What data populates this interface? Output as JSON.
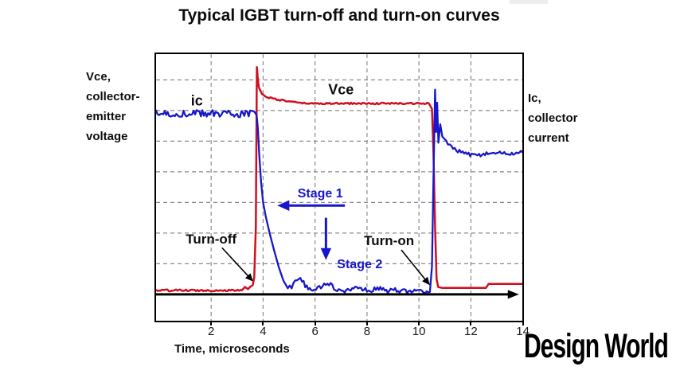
{
  "watermark": "Design World",
  "artifact_color": "#ededf0",
  "chart_data": {
    "type": "line",
    "title": "Typical IGBT turn-off and turn-on curves",
    "xlabel": "Time, microseconds",
    "ylabel": "",
    "left_axis_label": "Vce,\ncollector-\nemitter\nvoltage",
    "right_axis_label": "Ic,\ncollector\ncurrent",
    "x_ticks": [
      2,
      4,
      6,
      8,
      10,
      12,
      14
    ],
    "xlim": [
      -0.12,
      13.98
    ],
    "ylim": [
      -0.86,
      7.84
    ],
    "y_units_note": "relative grid units, no y tick labels shown; time axis drawn at 0",
    "grid": true,
    "grid_color": "#8a8a8a",
    "frame_color": "#000000",
    "legend_position": "none",
    "series": [
      {
        "name": "Vce",
        "color": "#d00f1e",
        "width": 2.5,
        "points": [
          [
            -0.12,
            0.13
          ],
          [
            3.18,
            0.13
          ],
          [
            3.3,
            0.24
          ],
          [
            3.42,
            0.17
          ],
          [
            3.52,
            0.26
          ],
          [
            3.6,
            0.3
          ],
          [
            3.66,
            0.55
          ],
          [
            3.72,
            2.2
          ],
          [
            3.76,
            7.42
          ],
          [
            3.8,
            7.0
          ],
          [
            3.84,
            6.75
          ],
          [
            3.95,
            6.55
          ],
          [
            4.1,
            6.45
          ],
          [
            4.35,
            6.4
          ],
          [
            4.65,
            6.34
          ],
          [
            5.0,
            6.3
          ],
          [
            5.4,
            6.24
          ],
          [
            6.0,
            6.23
          ],
          [
            10.38,
            6.23
          ],
          [
            10.5,
            6.05
          ],
          [
            10.56,
            4.6
          ],
          [
            10.62,
            2.2
          ],
          [
            10.68,
            0.5
          ],
          [
            10.74,
            0.24
          ],
          [
            10.9,
            0.21
          ],
          [
            12.58,
            0.21
          ],
          [
            12.68,
            0.34
          ],
          [
            13.98,
            0.34
          ]
        ],
        "noise": [
          [
            -0.12,
            3.15,
            0.03
          ],
          [
            4.2,
            10.35,
            0.025
          ]
        ]
      },
      {
        "name": "ic",
        "color": "#1717c9",
        "width": 2.3,
        "points": [
          [
            -0.12,
            5.9
          ],
          [
            3.5,
            5.9
          ],
          [
            3.65,
            5.97
          ],
          [
            3.75,
            5.85
          ],
          [
            3.8,
            5.4
          ],
          [
            3.85,
            4.6
          ],
          [
            3.92,
            3.7
          ],
          [
            4.0,
            3.0
          ],
          [
            4.1,
            2.55
          ],
          [
            4.25,
            2.0
          ],
          [
            4.42,
            1.45
          ],
          [
            4.6,
            0.9
          ],
          [
            4.78,
            0.45
          ],
          [
            4.95,
            0.2
          ],
          [
            5.1,
            0.22
          ],
          [
            5.3,
            0.48
          ],
          [
            5.5,
            0.45
          ],
          [
            5.68,
            0.22
          ],
          [
            5.85,
            0.12
          ],
          [
            6.1,
            0.2
          ],
          [
            6.35,
            0.33
          ],
          [
            6.6,
            0.3
          ],
          [
            6.85,
            0.15
          ],
          [
            7.2,
            0.12
          ],
          [
            7.6,
            0.22
          ],
          [
            8.0,
            0.12
          ],
          [
            8.4,
            0.2
          ],
          [
            8.8,
            0.1
          ],
          [
            9.2,
            0.14
          ],
          [
            9.6,
            0.08
          ],
          [
            10.0,
            0.12
          ],
          [
            10.3,
            0.05
          ],
          [
            10.42,
            0.08
          ],
          [
            10.5,
            0.9
          ],
          [
            10.56,
            3.8
          ],
          [
            10.62,
            6.68
          ],
          [
            10.66,
            5.3
          ],
          [
            10.7,
            6.25
          ],
          [
            10.75,
            4.95
          ],
          [
            10.82,
            5.55
          ],
          [
            10.9,
            5.15
          ],
          [
            11.05,
            5.0
          ],
          [
            11.25,
            4.8
          ],
          [
            11.5,
            4.68
          ],
          [
            11.8,
            4.58
          ],
          [
            12.2,
            4.53
          ],
          [
            12.6,
            4.58
          ],
          [
            13.0,
            4.63
          ],
          [
            13.4,
            4.58
          ],
          [
            13.98,
            4.64
          ]
        ],
        "noise": [
          [
            -0.12,
            3.55,
            0.12
          ],
          [
            5.0,
            10.38,
            0.08
          ],
          [
            11.0,
            13.98,
            0.06
          ]
        ]
      }
    ],
    "annotations": [
      {
        "name": "label-ic",
        "text": "ic",
        "x": 1.45,
        "y": 6.32,
        "color": "#0d0d0d",
        "size": 18
      },
      {
        "name": "label-vce",
        "text": "Vce",
        "x": 7.0,
        "y": 6.67,
        "color": "#0d0d0d",
        "size": 18
      },
      {
        "name": "label-stage-1",
        "text": "Stage 1",
        "x": 6.2,
        "y": 3.28,
        "color": "#1717c9",
        "size": 16
      },
      {
        "name": "label-stage-2",
        "text": "Stage 2",
        "x": 7.72,
        "y": 0.95,
        "color": "#1717c9",
        "size": 16
      },
      {
        "name": "label-turn-off",
        "text": "Turn-off",
        "x": 2.0,
        "y": 1.78,
        "color": "#0d0d0d",
        "size": 17
      },
      {
        "name": "label-turn-on",
        "text": "Turn-on",
        "x": 8.85,
        "y": 1.75,
        "color": "#0d0d0d",
        "size": 17
      }
    ],
    "arrows": [
      {
        "name": "stage-1-arrow",
        "from": [
          7.15,
          2.9
        ],
        "to": [
          4.55,
          2.9
        ],
        "color": "#1717c9",
        "width": 3,
        "head": 15
      },
      {
        "name": "stage-2-arrow",
        "from": [
          6.42,
          2.5
        ],
        "to": [
          6.42,
          1.12
        ],
        "color": "#1717c9",
        "width": 3,
        "head": 15
      },
      {
        "name": "turn-off-arrow",
        "from": [
          2.42,
          1.52
        ],
        "to": [
          3.62,
          0.42
        ],
        "color": "#000000",
        "width": 1.6,
        "head": 10
      },
      {
        "name": "turn-on-arrow",
        "from": [
          9.32,
          1.45
        ],
        "to": [
          10.42,
          0.3
        ],
        "color": "#000000",
        "width": 1.6,
        "head": 10
      }
    ],
    "baseline_axis": {
      "from": [
        -0.12,
        0
      ],
      "to": [
        13.85,
        0
      ],
      "color": "#000000",
      "width": 3
    }
  }
}
